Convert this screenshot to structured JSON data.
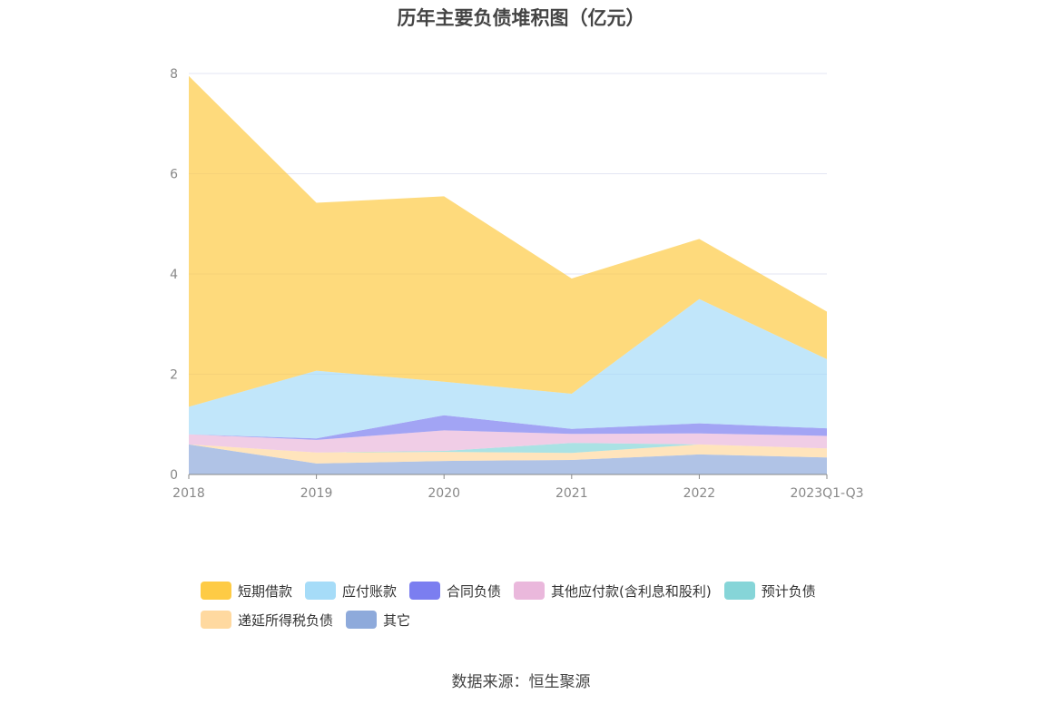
{
  "chart_data": {
    "type": "area",
    "stacked": true,
    "title": "历年主要负债堆积图（亿元）",
    "categories": [
      "2018",
      "2019",
      "2020",
      "2021",
      "2022",
      "2023Q1-Q3"
    ],
    "ylim": [
      0,
      8
    ],
    "yticks": [
      0,
      2,
      4,
      6,
      8
    ],
    "grid": true,
    "legend_position": "bottom",
    "series": [
      {
        "name": "其它",
        "color": "#8eaadb",
        "values": [
          0.6,
          0.22,
          0.27,
          0.29,
          0.4,
          0.34
        ]
      },
      {
        "name": "递延所得税负债",
        "color": "#ffd9a0",
        "values": [
          0.0,
          0.22,
          0.18,
          0.14,
          0.2,
          0.18
        ]
      },
      {
        "name": "预计负债",
        "color": "#86d5d8",
        "values": [
          0.0,
          0.0,
          0.02,
          0.2,
          0.0,
          0.0
        ]
      },
      {
        "name": "其他应付款(含利息和股利)",
        "color": "#eab8dc",
        "values": [
          0.2,
          0.25,
          0.41,
          0.18,
          0.22,
          0.25
        ]
      },
      {
        "name": "合同负债",
        "color": "#7b7ef0",
        "values": [
          0.0,
          0.03,
          0.3,
          0.1,
          0.2,
          0.15
        ]
      },
      {
        "name": "应付账款",
        "color": "#a6dcf8",
        "values": [
          0.55,
          1.35,
          0.67,
          0.7,
          2.48,
          1.38
        ]
      },
      {
        "name": "短期借款",
        "color": "#fecb45",
        "values": [
          6.6,
          3.35,
          3.7,
          2.3,
          1.2,
          0.95
        ]
      }
    ]
  },
  "legend": [
    {
      "label": "短期借款",
      "color": "#fecb45"
    },
    {
      "label": "应付账款",
      "color": "#a6dcf8"
    },
    {
      "label": "合同负债",
      "color": "#7b7ef0"
    },
    {
      "label": "其他应付款(含利息和股利)",
      "color": "#eab8dc"
    },
    {
      "label": "预计负债",
      "color": "#86d5d8"
    },
    {
      "label": "递延所得税负债",
      "color": "#ffd9a0"
    },
    {
      "label": "其它",
      "color": "#8eaadb"
    }
  ],
  "source": "数据来源：恒生聚源"
}
